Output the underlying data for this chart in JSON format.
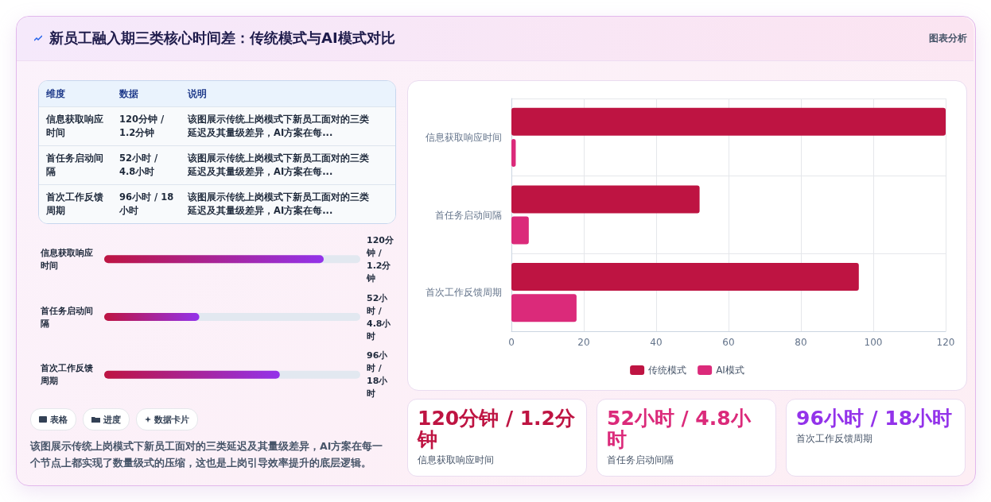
{
  "chart_data": [
    {
      "type": "bar",
      "title": "新员工融入期三类核心时间差：传统模式与AI模式对比",
      "orientation": "horizontal",
      "categories": [
        "信息获取响应时间",
        "首任务启动间隔",
        "首次工作反馈周期"
      ],
      "series": [
        {
          "name": "传统模式",
          "color": "#be1442",
          "values": [
            120,
            52,
            96
          ]
        },
        {
          "name": "AI模式",
          "color": "#db2a7a",
          "values": [
            1.2,
            4.8,
            18
          ]
        }
      ],
      "xlim": [
        0,
        120
      ],
      "xticks": [
        0,
        20,
        40,
        60,
        80,
        100,
        120
      ],
      "grid": true,
      "legend": "bottom",
      "annotations": [
        "图表分析",
        "表格",
        "进度",
        "数据卡片",
        "该图展示传统上岗模式下新员工面对的三类延迟及其量级差异，AI方案在每一个节点上都实现了数量级式的压缩，这也是上岗引导效率提升的底层逻辑。"
      ]
    },
    {
      "type": "other",
      "annotations": [
        "维度",
        "数据",
        "说明",
        "信息获取响应时间",
        "120分钟 / 1.2分钟",
        "该图展示传统上岗模式下新员工面对的三类延迟及其量级差异，AI方案在每...",
        "首任务启动间隔",
        "52小时 / 4.8小时",
        "该图展示传统上岗模式下新员工面对的三类延迟及其量级差异，AI方案在每...",
        "首次工作反馈周期",
        "96小时 / 18小时",
        "该图展示传统上岗模式下新员工面对的三类延迟及其量级差异，AI方案在每..."
      ]
    },
    {
      "type": "bar",
      "orientation": "horizontal",
      "categories": [
        "信息获取响应时间",
        "首任务启动间隔",
        "首次工作反馈周期"
      ],
      "values": [
        120,
        52,
        96
      ],
      "value_labels": [
        "120分钟 / 1.2分钟",
        "52小时 / 4.8小时",
        "96小时 / 18小时"
      ],
      "color": "#be1442",
      "xlim": [
        0,
        140
      ],
      "tick_labels": false
    },
    {
      "type": "other",
      "annotations": [
        "120分钟 / 1.2分钟",
        "信息获取响应时间",
        "52小时 / 4.8小时",
        "首任务启动间隔",
        "96小时 / 18小时",
        "首次工作反馈周期"
      ],
      "colors": [
        "#be1442",
        "#db2a7a",
        "#9333ea"
      ]
    }
  ]
}
